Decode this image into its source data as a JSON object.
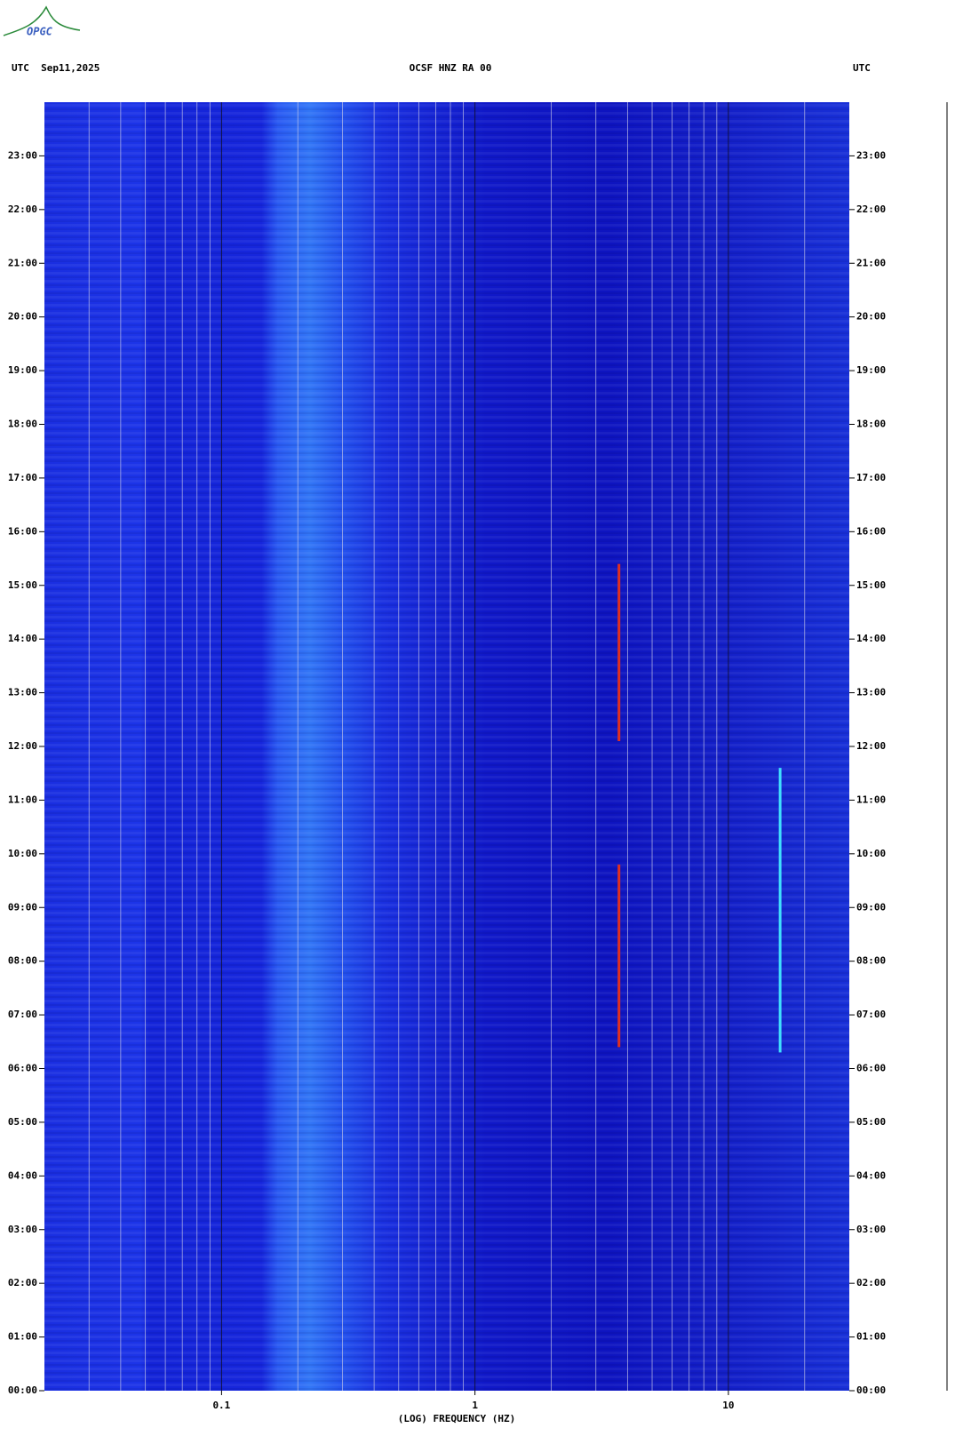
{
  "logo": "OPGC",
  "chart_data": {
    "type": "spectrogram",
    "title": "OCSF HNZ RA 00",
    "left_label": "UTC  Sep11,2025",
    "right_label": "UTC",
    "xlabel": "(LOG) FREQUENCY (HZ)",
    "xscale": "log",
    "xlim": [
      0.02,
      30
    ],
    "xticks": [
      0.1,
      1,
      10
    ],
    "xminorticks": [
      0.03,
      0.04,
      0.05,
      0.06,
      0.07,
      0.08,
      0.09,
      0.2,
      0.3,
      0.4,
      0.5,
      0.6,
      0.7,
      0.8,
      0.9,
      2,
      3,
      4,
      5,
      6,
      7,
      8,
      9,
      20
    ],
    "ylim": [
      0,
      24
    ],
    "yticks": [
      {
        "value": 0,
        "label": "00:00"
      },
      {
        "value": 1,
        "label": "01:00"
      },
      {
        "value": 2,
        "label": "02:00"
      },
      {
        "value": 3,
        "label": "03:00"
      },
      {
        "value": 4,
        "label": "04:00"
      },
      {
        "value": 5,
        "label": "05:00"
      },
      {
        "value": 6,
        "label": "06:00"
      },
      {
        "value": 7,
        "label": "07:00"
      },
      {
        "value": 8,
        "label": "08:00"
      },
      {
        "value": 9,
        "label": "09:00"
      },
      {
        "value": 10,
        "label": "10:00"
      },
      {
        "value": 11,
        "label": "11:00"
      },
      {
        "value": 12,
        "label": "12:00"
      },
      {
        "value": 13,
        "label": "13:00"
      },
      {
        "value": 14,
        "label": "14:00"
      },
      {
        "value": 15,
        "label": "15:00"
      },
      {
        "value": 16,
        "label": "16:00"
      },
      {
        "value": 17,
        "label": "17:00"
      },
      {
        "value": 18,
        "label": "18:00"
      },
      {
        "value": 19,
        "label": "19:00"
      },
      {
        "value": 20,
        "label": "20:00"
      },
      {
        "value": 21,
        "label": "21:00"
      },
      {
        "value": 22,
        "label": "22:00"
      },
      {
        "value": 23,
        "label": "23:00"
      }
    ],
    "events": [
      {
        "freq": 3.7,
        "start": 6.4,
        "end": 9.8,
        "color": "#e03020"
      },
      {
        "freq": 3.7,
        "start": 12.1,
        "end": 15.4,
        "color": "#e03020"
      },
      {
        "freq": 16,
        "start": 6.3,
        "end": 11.6,
        "color": "#40e0ff"
      }
    ]
  }
}
